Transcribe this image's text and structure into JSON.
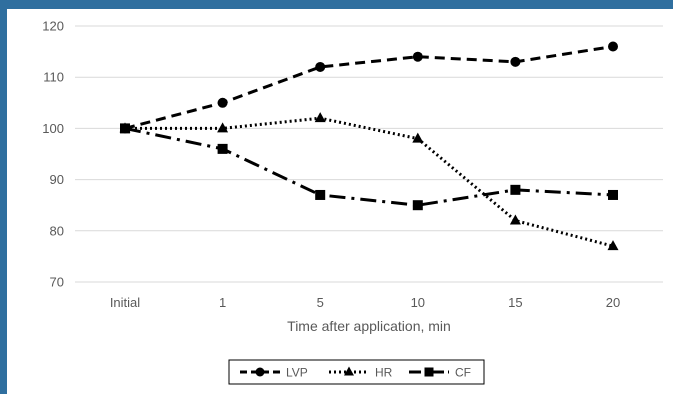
{
  "chart_data": {
    "type": "line",
    "title": "",
    "categories": [
      "Initial",
      "1",
      "5",
      "10",
      "15",
      "20"
    ],
    "xlabel": "Time after application, min",
    "ylabel": "",
    "ylim": [
      70,
      120
    ],
    "yticks": [
      70,
      80,
      90,
      100,
      110,
      120
    ],
    "grid": true,
    "legend_position": "bottom",
    "series": [
      {
        "name": "LVP",
        "values": [
          100,
          105,
          112,
          114,
          113,
          116
        ],
        "marker": "circle",
        "dash": "dashed",
        "color": "#000000"
      },
      {
        "name": "HR",
        "values": [
          100,
          100,
          102,
          98,
          82,
          77
        ],
        "marker": "triangle",
        "dash": "dotted",
        "color": "#000000"
      },
      {
        "name": "CF",
        "values": [
          100,
          96,
          87,
          85,
          88,
          87
        ],
        "marker": "square",
        "dash": "dash-dot",
        "color": "#000000"
      }
    ]
  },
  "colors": {
    "frame": "#2f6f9f",
    "grid": "#d9d9d9",
    "text": "#595959",
    "series": "#000000"
  }
}
